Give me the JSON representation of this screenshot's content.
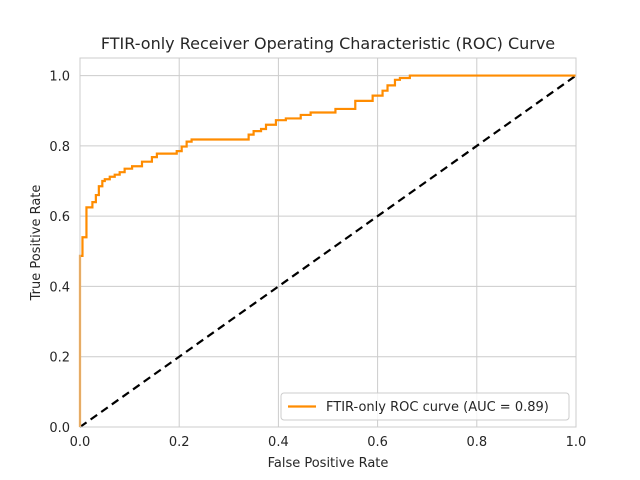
{
  "chart_data": {
    "type": "line",
    "title": "FTIR-only Receiver Operating Characteristic (ROC) Curve",
    "xlabel": "False Positive Rate",
    "ylabel": "True Positive Rate",
    "xlim": [
      0,
      1.0
    ],
    "ylim": [
      0,
      1.05
    ],
    "xticks": [
      0.0,
      0.2,
      0.4,
      0.6,
      0.8,
      1.0
    ],
    "yticks": [
      0.0,
      0.2,
      0.4,
      0.6,
      0.8,
      1.0
    ],
    "xtick_labels": [
      "0.0",
      "0.2",
      "0.4",
      "0.6",
      "0.8",
      "1.0"
    ],
    "ytick_labels": [
      "0.0",
      "0.2",
      "0.4",
      "0.6",
      "0.8",
      "1.0"
    ],
    "grid": true,
    "legend_position": "lower-right",
    "series": [
      {
        "name": "FTIR-only ROC curve (AUC = 0.89)",
        "color": "#ff8c00",
        "style": "solid",
        "x": [
          0,
          0,
          0.005,
          0.005,
          0.013,
          0.013,
          0.025,
          0.025,
          0.032,
          0.032,
          0.038,
          0.038,
          0.045,
          0.045,
          0.05,
          0.05,
          0.06,
          0.06,
          0.07,
          0.07,
          0.08,
          0.08,
          0.09,
          0.09,
          0.105,
          0.105,
          0.125,
          0.125,
          0.145,
          0.145,
          0.155,
          0.155,
          0.195,
          0.195,
          0.205,
          0.205,
          0.215,
          0.215,
          0.225,
          0.225,
          0.34,
          0.34,
          0.35,
          0.35,
          0.365,
          0.365,
          0.375,
          0.375,
          0.395,
          0.395,
          0.415,
          0.415,
          0.445,
          0.445,
          0.465,
          0.465,
          0.515,
          0.515,
          0.555,
          0.555,
          0.59,
          0.59,
          0.61,
          0.61,
          0.62,
          0.62,
          0.635,
          0.635,
          0.645,
          0.645,
          0.665,
          0.665,
          1.0
        ],
        "y": [
          0,
          0.487,
          0.487,
          0.54,
          0.54,
          0.625,
          0.625,
          0.64,
          0.64,
          0.66,
          0.66,
          0.685,
          0.685,
          0.7,
          0.7,
          0.705,
          0.705,
          0.712,
          0.712,
          0.718,
          0.718,
          0.725,
          0.725,
          0.735,
          0.735,
          0.742,
          0.742,
          0.755,
          0.755,
          0.768,
          0.768,
          0.778,
          0.778,
          0.785,
          0.785,
          0.798,
          0.798,
          0.812,
          0.812,
          0.818,
          0.818,
          0.832,
          0.832,
          0.842,
          0.842,
          0.848,
          0.848,
          0.86,
          0.86,
          0.873,
          0.873,
          0.878,
          0.878,
          0.888,
          0.888,
          0.895,
          0.895,
          0.905,
          0.905,
          0.928,
          0.928,
          0.943,
          0.943,
          0.957,
          0.957,
          0.972,
          0.972,
          0.988,
          0.988,
          0.993,
          0.993,
          1.0,
          1.0
        ]
      },
      {
        "color": "#000000",
        "style": "dashed",
        "x": [
          0,
          1
        ],
        "y": [
          0,
          1
        ]
      }
    ]
  }
}
